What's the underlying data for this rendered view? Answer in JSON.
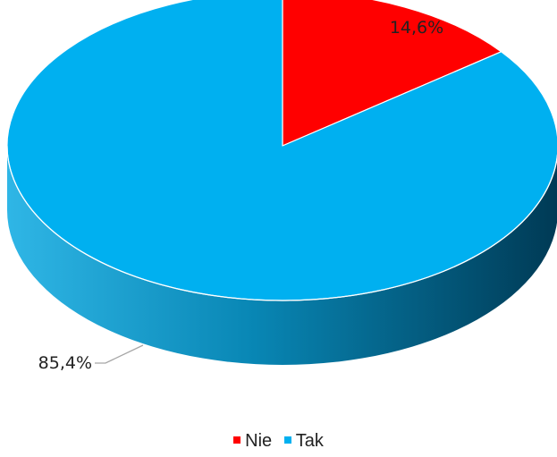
{
  "chart_data": {
    "type": "pie",
    "style": "3d",
    "categories": [
      "Nie",
      "Tak"
    ],
    "values": [
      14.6,
      85.4
    ],
    "data_labels": [
      "14,6%",
      "85,4%"
    ],
    "colors": [
      "#ff0000",
      "#00b0f0"
    ],
    "legend_position": "bottom"
  }
}
